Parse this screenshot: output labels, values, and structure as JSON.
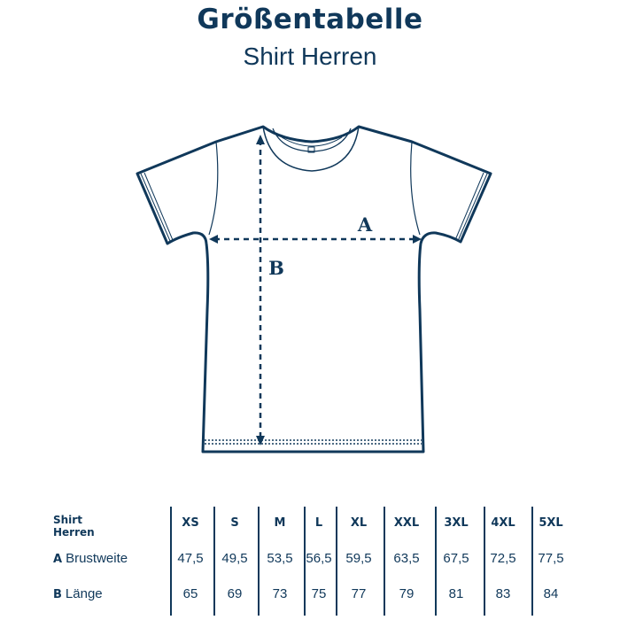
{
  "header": {
    "title": "Größentabelle",
    "subtitle": "Shirt Herren"
  },
  "diagram": {
    "label_a": "A",
    "label_b": "B",
    "color": "#10385a"
  },
  "table": {
    "corner_line1": "Shirt",
    "corner_line2": "Herren",
    "sizes": [
      "XS",
      "S",
      "M",
      "L",
      "XL",
      "XXL",
      "3XL",
      "4XL",
      "5XL"
    ],
    "rows": [
      {
        "key": "A",
        "label": "Brustweite",
        "values": [
          "47,5",
          "49,5",
          "53,5",
          "56,5",
          "59,5",
          "63,5",
          "67,5",
          "72,5",
          "77,5"
        ]
      },
      {
        "key": "B",
        "label": "Länge",
        "values": [
          "65",
          "69",
          "73",
          "75",
          "77",
          "79",
          "81",
          "83",
          "84"
        ]
      }
    ]
  }
}
